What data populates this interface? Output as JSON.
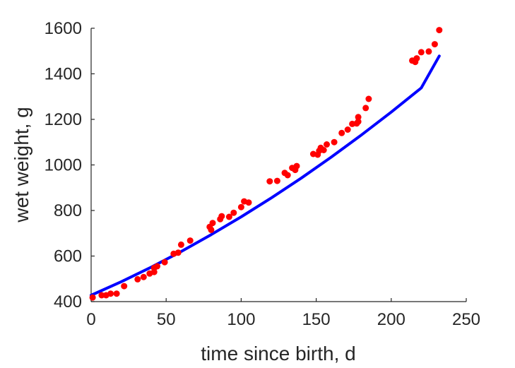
{
  "chart_data": {
    "type": "scatter",
    "xlabel": "time since birth, d",
    "ylabel": "wet weight, g",
    "xlim": [
      0,
      250
    ],
    "ylim": [
      400,
      1600
    ],
    "xticks": [
      0,
      50,
      100,
      150,
      200,
      250
    ],
    "yticks": [
      400,
      600,
      800,
      1000,
      1200,
      1400,
      1600
    ],
    "grid": false,
    "series": [
      {
        "kind": "points",
        "color": "#ff0000",
        "x": [
          1,
          7,
          10,
          13,
          17,
          22,
          31,
          35,
          39,
          42,
          42,
          44,
          49,
          55,
          58,
          60,
          66,
          79,
          80,
          81,
          86,
          87,
          92,
          95,
          100,
          102,
          105,
          119,
          124,
          129,
          131,
          134,
          136,
          137,
          148,
          151,
          152,
          153,
          155,
          157,
          162,
          167,
          171,
          174,
          177,
          178,
          178,
          183,
          185,
          214,
          216,
          217,
          220,
          225,
          229,
          232
        ],
        "y": [
          418,
          428,
          428,
          435,
          435,
          468,
          498,
          508,
          523,
          530,
          548,
          555,
          573,
          610,
          615,
          650,
          668,
          728,
          715,
          745,
          762,
          775,
          772,
          790,
          815,
          840,
          835,
          928,
          930,
          965,
          955,
          987,
          978,
          995,
          1048,
          1045,
          1062,
          1075,
          1065,
          1090,
          1100,
          1140,
          1155,
          1180,
          1182,
          1210,
          1190,
          1250,
          1290,
          1458,
          1452,
          1468,
          1495,
          1498,
          1530,
          1592
        ]
      },
      {
        "kind": "line",
        "color": "#0000ff",
        "x": [
          0,
          20,
          40,
          60,
          80,
          100,
          120,
          140,
          160,
          180,
          200,
          220,
          232
        ],
        "y": [
          428,
          487,
          551,
          620,
          694,
          772,
          855,
          942,
          1034,
          1131,
          1232,
          1338,
          1478
        ]
      }
    ]
  }
}
